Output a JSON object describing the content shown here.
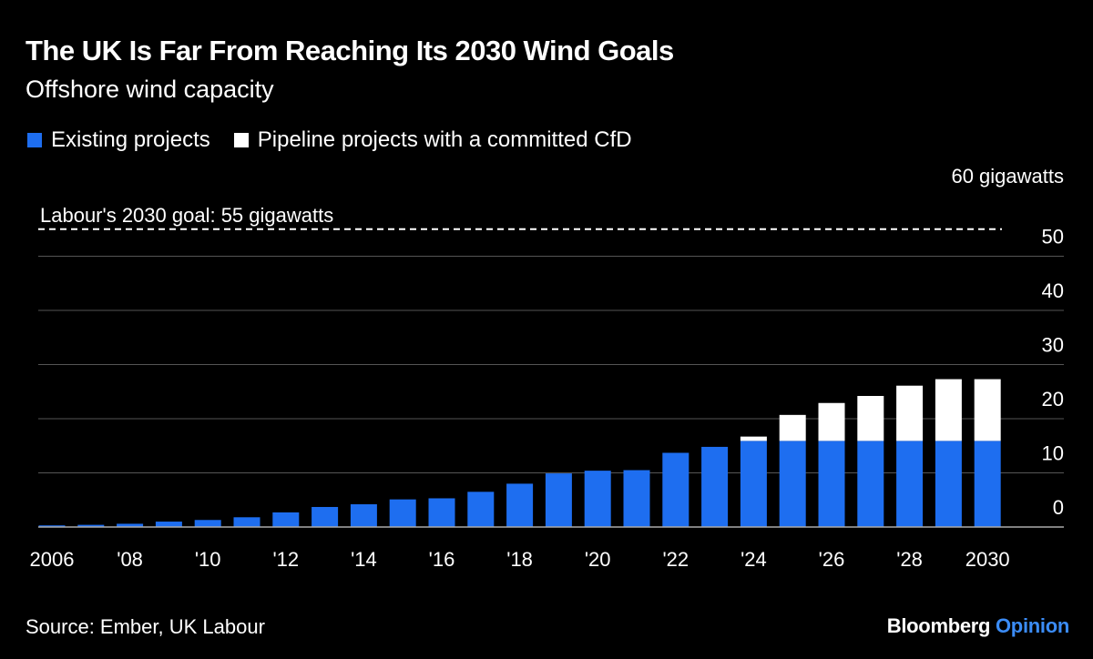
{
  "title": "The UK Is Far From Reaching Its 2030 Wind Goals",
  "subtitle": "Offshore wind capacity",
  "source": "Source: Ember, UK Labour",
  "brand": {
    "name": "Bloomberg",
    "suffix": "Opinion"
  },
  "colors": {
    "existing": "#1e6ef0",
    "pipeline": "#ffffff",
    "background": "#000000",
    "grid": "#555555",
    "brand_accent": "#3b8cf6"
  },
  "chart_data": {
    "type": "bar",
    "stacked": true,
    "categories": [
      "2006",
      "2007",
      "2008",
      "2009",
      "2010",
      "2011",
      "2012",
      "2013",
      "2014",
      "2015",
      "2016",
      "2017",
      "2018",
      "2019",
      "2020",
      "2021",
      "2022",
      "2023",
      "2024",
      "2025",
      "2026",
      "2027",
      "2028",
      "2029",
      "2030"
    ],
    "x_tick_labels": [
      "2006",
      "",
      "'08",
      "",
      "'10",
      "",
      "'12",
      "",
      "'14",
      "",
      "'16",
      "",
      "'18",
      "",
      "'20",
      "",
      "'22",
      "",
      "'24",
      "",
      "'26",
      "",
      "'28",
      "",
      "2030"
    ],
    "series": [
      {
        "name": "Existing projects",
        "color": "#1e6ef0",
        "values": [
          0.3,
          0.4,
          0.6,
          1.0,
          1.3,
          1.8,
          2.7,
          3.7,
          4.2,
          5.1,
          5.3,
          6.5,
          8.0,
          9.9,
          10.4,
          10.5,
          13.7,
          14.8,
          15.9,
          15.9,
          15.9,
          15.9,
          15.9,
          15.9,
          15.9
        ]
      },
      {
        "name": "Pipeline projects with a committed CfD",
        "color": "#ffffff",
        "values": [
          0,
          0,
          0,
          0,
          0,
          0,
          0,
          0,
          0,
          0,
          0,
          0,
          0,
          0,
          0,
          0,
          0,
          0,
          0.8,
          4.8,
          7.0,
          8.3,
          10.2,
          11.4,
          11.4
        ]
      }
    ],
    "ylim": [
      0,
      60
    ],
    "y_ticks": [
      0,
      10,
      20,
      30,
      40,
      50
    ],
    "y_top_label": "60 gigawatts",
    "reference_line": {
      "value": 55,
      "label": "Labour's 2030 goal: 55 gigawatts",
      "style": "dashed"
    },
    "grid": true,
    "legend_position": "top-left"
  }
}
